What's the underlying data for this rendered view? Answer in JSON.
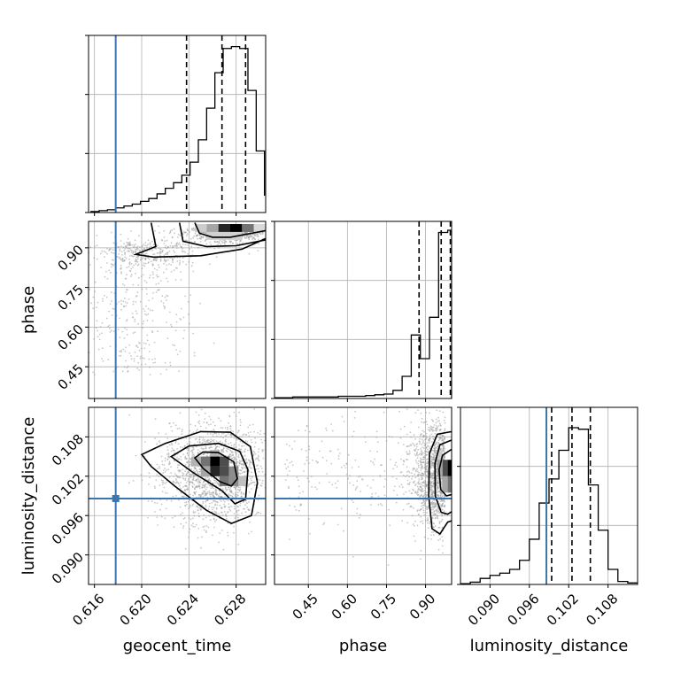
{
  "chart_data": {
    "type": "corner",
    "parameters": [
      "geocent_time",
      "phase",
      "luminosity_distance"
    ],
    "truths": {
      "geocent_time": 0.6178,
      "phase": null,
      "luminosity_distance": 0.0986
    },
    "colors": {
      "truth": "#3b75af",
      "hist": "#000000",
      "grid": "#b0b0b0",
      "samples": "#9a9a9a"
    },
    "panels": {
      "geocent_time": {
        "kind": "hist1d",
        "xlim": [
          0.6155,
          0.6305
        ],
        "bins": [
          0.6157,
          0.6164,
          0.6171,
          0.6178,
          0.6185,
          0.6192,
          0.6199,
          0.6206,
          0.6213,
          0.622,
          0.6227,
          0.6234,
          0.6241,
          0.6248,
          0.6255,
          0.6262,
          0.6269,
          0.6276,
          0.6283,
          0.629,
          0.6297,
          0.6304
        ],
        "counts": [
          1,
          2,
          3,
          5,
          7,
          9,
          12,
          15,
          20,
          26,
          32,
          40,
          54,
          78,
          112,
          150,
          176,
          178,
          176,
          131,
          66,
          18
        ],
        "ymax": 190,
        "quantiles": [
          0.6238,
          0.6268,
          0.6288
        ]
      },
      "phase": {
        "kind": "hist1d",
        "xlim": [
          0.32,
          1.0
        ],
        "bins": [
          0.32,
          0.355,
          0.39,
          0.425,
          0.46,
          0.495,
          0.53,
          0.565,
          0.6,
          0.635,
          0.67,
          0.705,
          0.74,
          0.775,
          0.81,
          0.845,
          0.88,
          0.915,
          0.95,
          0.985,
          1.0
        ],
        "counts": [
          1,
          1,
          2,
          2,
          2,
          2,
          2,
          3,
          3,
          3,
          4,
          5,
          6,
          11,
          30,
          86,
          54,
          110,
          225,
          228
        ],
        "ymax": 240,
        "quantiles": [
          0.875,
          0.96,
          0.995
        ]
      },
      "luminosity_distance": {
        "kind": "hist1d",
        "xlim": [
          0.0855,
          0.1125
        ],
        "bins": [
          0.0855,
          0.087,
          0.0885,
          0.09,
          0.0915,
          0.093,
          0.0945,
          0.096,
          0.0975,
          0.099,
          0.1005,
          0.102,
          0.1035,
          0.105,
          0.1065,
          0.108,
          0.1095,
          0.111,
          0.1125
        ],
        "counts": [
          1,
          3,
          8,
          12,
          15,
          20,
          32,
          60,
          108,
          140,
          178,
          208,
          206,
          132,
          72,
          20,
          4,
          2
        ],
        "ymax": 235,
        "quantiles": [
          0.0994,
          0.1025,
          0.1053
        ]
      },
      "phase_vs_geocent_time": {
        "kind": "hist2d",
        "xlim": [
          0.6155,
          0.6305
        ],
        "ylim": [
          0.33,
          1.0
        ]
      },
      "luminosity_distance_vs_geocent_time": {
        "kind": "hist2d",
        "xlim": [
          0.6155,
          0.6305
        ],
        "ylim": [
          0.0855,
          0.1125
        ]
      },
      "luminosity_distance_vs_phase": {
        "kind": "hist2d",
        "xlim": [
          0.32,
          1.0
        ],
        "ylim": [
          0.0855,
          0.1125
        ]
      }
    },
    "ticks": {
      "geocent_time": {
        "values": [
          0.616,
          0.62,
          0.624,
          0.628
        ],
        "labels": [
          "0.616",
          "0.620",
          "0.624",
          "0.628"
        ]
      },
      "phase": {
        "values": [
          0.45,
          0.6,
          0.75,
          0.9
        ],
        "labels": [
          "0.45",
          "0.60",
          "0.75",
          "0.90"
        ]
      },
      "luminosity_distance": {
        "values": [
          0.09,
          0.096,
          0.102,
          0.108
        ],
        "labels": [
          "0.090",
          "0.096",
          "0.102",
          "0.108"
        ]
      }
    },
    "xlabels": {
      "geocent_time": "geocent_time",
      "phase": "phase",
      "luminosity_distance": "luminosity_distance"
    },
    "ylabels": {
      "phase": "phase",
      "luminosity_distance": "luminosity_distance"
    },
    "grid": true
  }
}
